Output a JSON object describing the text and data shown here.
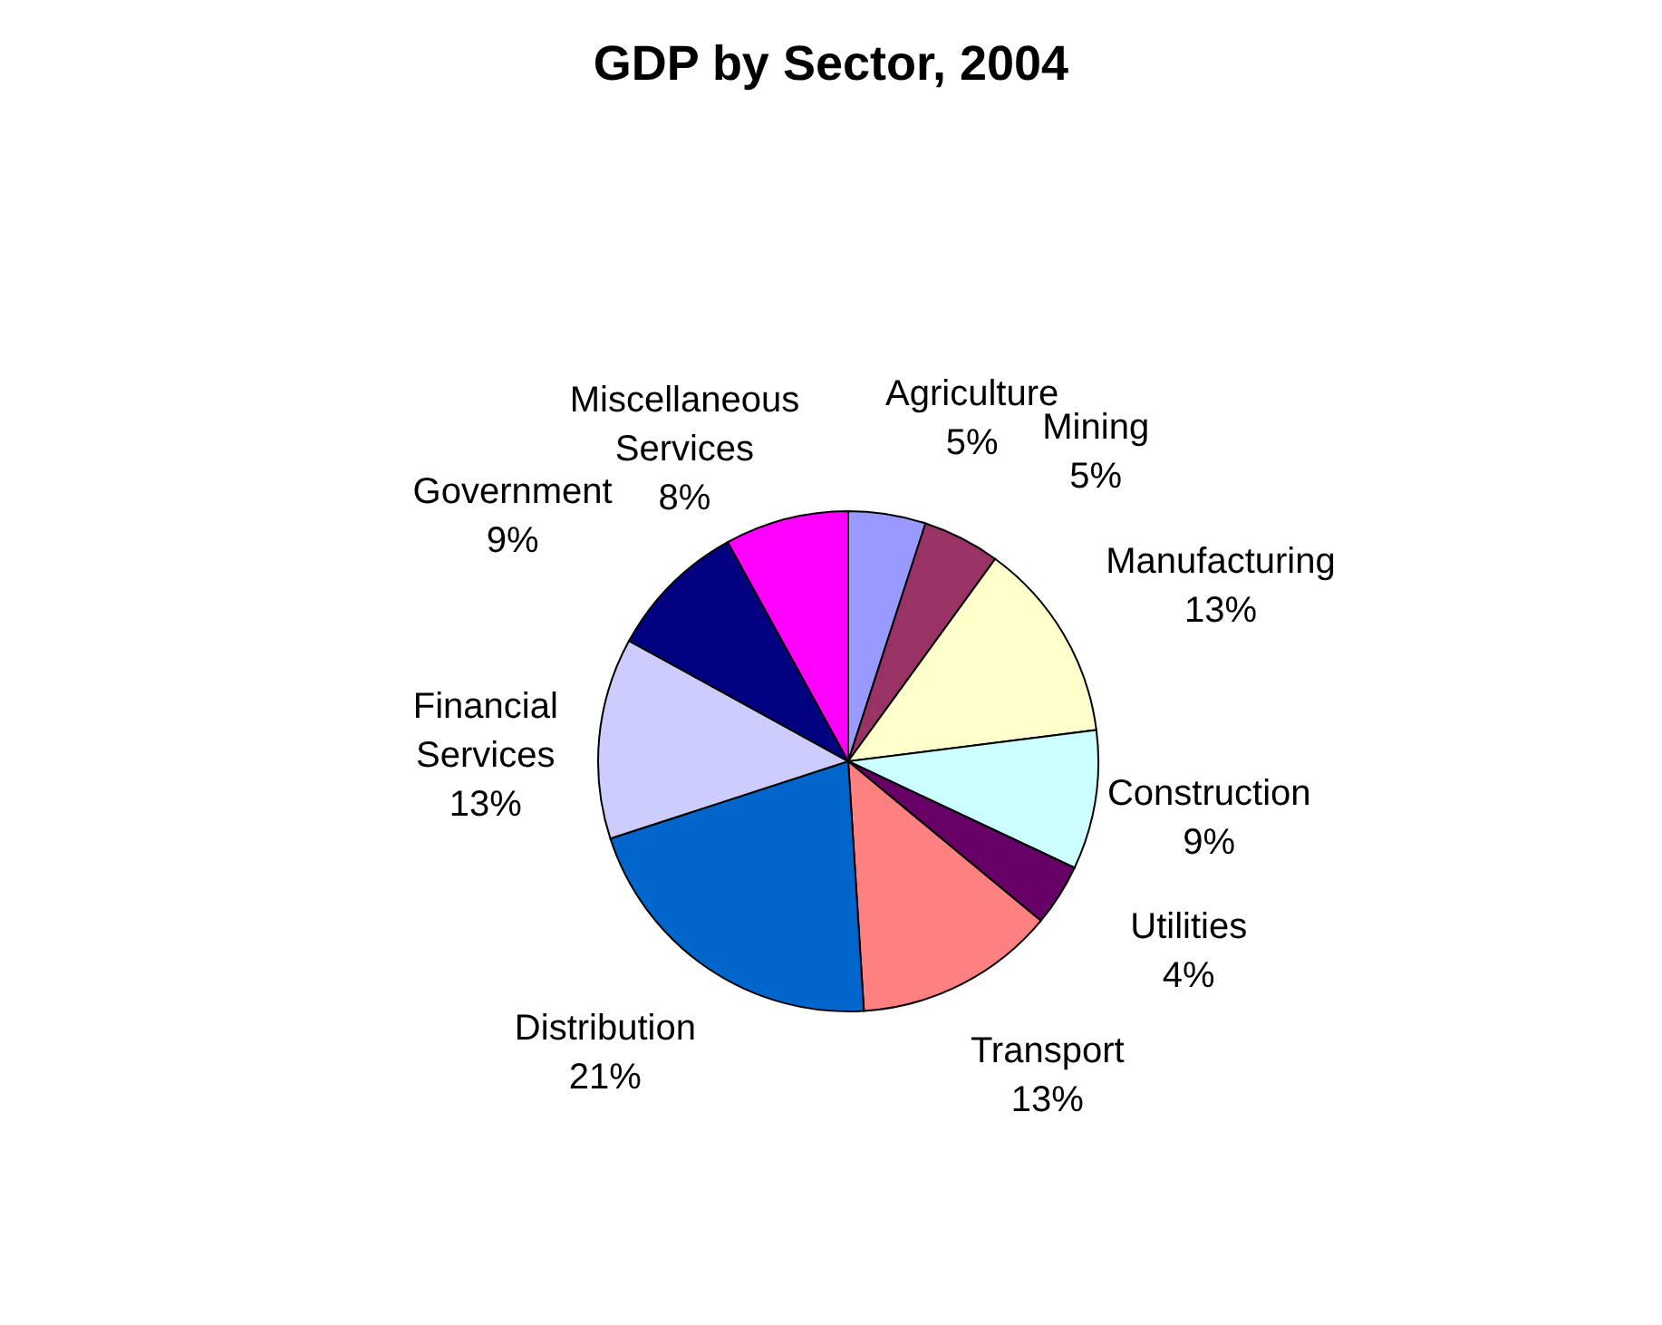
{
  "chart_data": {
    "type": "pie",
    "title": "GDP by Sector, 2004",
    "categories": [
      "Agriculture",
      "Mining",
      "Manufacturing",
      "Construction",
      "Utilities",
      "Transport",
      "Distribution",
      "Financial Services",
      "Government",
      "Miscellaneous Services"
    ],
    "values": [
      5,
      5,
      13,
      9,
      4,
      13,
      21,
      13,
      9,
      8
    ],
    "value_labels": [
      "5%",
      "5%",
      "13%",
      "9%",
      "4%",
      "13%",
      "21%",
      "13%",
      "9%",
      "8%"
    ],
    "colors": [
      "#9999ff",
      "#993366",
      "#ffffcc",
      "#ccffff",
      "#660066",
      "#ff8080",
      "#0066cc",
      "#ccccff",
      "#000080",
      "#ff00ff"
    ],
    "legend": false
  }
}
